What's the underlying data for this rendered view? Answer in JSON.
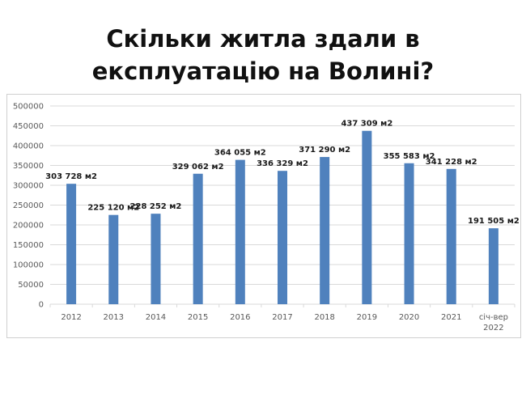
{
  "slide": {
    "title_line1": "Скільки житла здали в",
    "title_line2": "експлуатацію на Волині?"
  },
  "colors": {
    "bar": "#4F81BD",
    "grid": "#D9D9D9",
    "axis_text": "#595959"
  },
  "chart_data": {
    "type": "bar",
    "title": "",
    "xlabel": "",
    "ylabel": "",
    "ylim": [
      0,
      500000
    ],
    "yticks": [
      "500000",
      "450000",
      "400000",
      "350000",
      "300000",
      "250000",
      "200000",
      "150000",
      "100000",
      "50000",
      "0"
    ],
    "categories": [
      "2012",
      "2013",
      "2014",
      "2015",
      "2016",
      "2017",
      "2018",
      "2019",
      "2020",
      "2021",
      "січ-вер 2022"
    ],
    "category_lines": [
      [
        "2012"
      ],
      [
        "2013"
      ],
      [
        "2014"
      ],
      [
        "2015"
      ],
      [
        "2016"
      ],
      [
        "2017"
      ],
      [
        "2018"
      ],
      [
        "2019"
      ],
      [
        "2020"
      ],
      [
        "2021"
      ],
      [
        "січ-вер",
        "2022"
      ]
    ],
    "values": [
      303728,
      225120,
      228252,
      329062,
      364055,
      336329,
      371290,
      437309,
      355583,
      341228,
      191505
    ],
    "data_labels": [
      "303 728 м2",
      "225 120 м2",
      "228 252 м2",
      "329 062 м2",
      "364 055 м2",
      "336 329 м2",
      "371 290 м2",
      "437 309 м2",
      "355 583 м2",
      "341 228 м2",
      "191 505 м2"
    ],
    "grid": true,
    "legend": "none"
  }
}
